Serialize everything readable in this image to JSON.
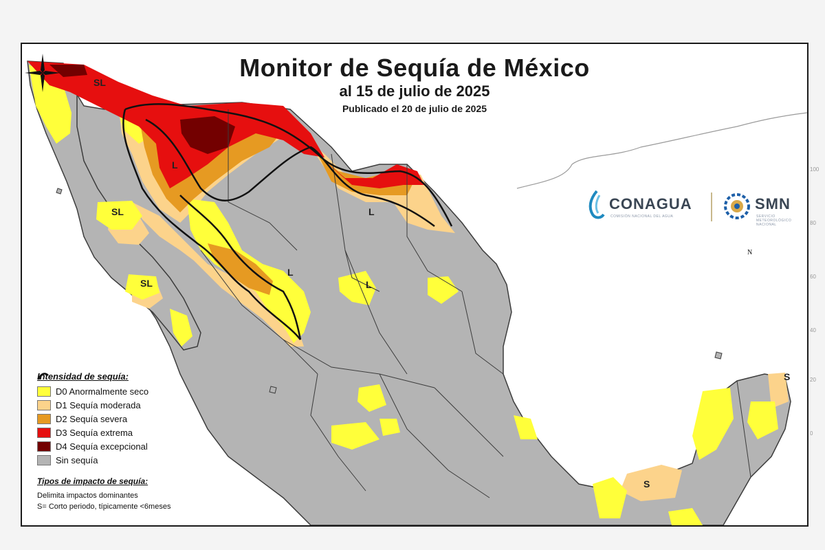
{
  "map": {
    "title": "Monitor de Sequía de México",
    "subtitle": "al 15 de julio de 2025",
    "published": "Publicado el 20 de julio de 2025",
    "colors": {
      "D0": "#ffff3a",
      "D1": "#fcd38b",
      "D2": "#e69a22",
      "D3": "#e60f0f",
      "D4": "#730000",
      "none": "#b4b4b4",
      "water": "#ffffff",
      "border": "#3c3c3c"
    },
    "impact_labels": [
      "SL",
      "SL",
      "SL",
      "L",
      "L",
      "L",
      "L",
      "L",
      "S",
      "S"
    ]
  },
  "legend": {
    "title": "Intensidad de sequía:",
    "items": [
      {
        "code": "D0",
        "label": "D0 Anormalmente seco"
      },
      {
        "code": "D1",
        "label": "D1 Sequía moderada"
      },
      {
        "code": "D2",
        "label": "D2 Sequía severa"
      },
      {
        "code": "D3",
        "label": "D3 Sequía extrema"
      },
      {
        "code": "D4",
        "label": "D4 Sequía excepcional"
      },
      {
        "code": "none",
        "label": "Sin sequía"
      }
    ],
    "impact_title": "Tipos de impacto de sequía:",
    "impact_items": [
      "Delimita impactos dominantes",
      "S= Corto periodo, típicamente <6meses"
    ]
  },
  "logos": {
    "conagua": "CONAGUA",
    "conagua_sub": "COMISIÓN NACIONAL DEL AGUA",
    "smn": "SMN",
    "smn_sub": "SERVICIO METEOROLÓGICO NACIONAL"
  },
  "compass": {
    "north": "N"
  },
  "edge_ticks": [
    "100",
    "80",
    "60",
    "40",
    "20",
    "0"
  ]
}
